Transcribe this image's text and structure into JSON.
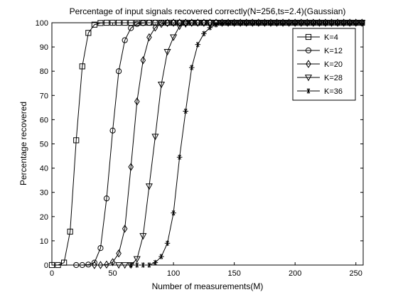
{
  "chart_data": {
    "type": "line",
    "title": "Percentage of input signals recovered correctly(N=256,ts=2.4)(Gaussian)",
    "xlabel": "Number of measurements(M)",
    "ylabel": "Percentage recovered",
    "xlim": [
      0,
      256
    ],
    "ylim": [
      0,
      100
    ],
    "xticks": [
      0,
      50,
      100,
      150,
      200,
      250
    ],
    "yticks": [
      0,
      10,
      20,
      30,
      40,
      50,
      60,
      70,
      80,
      90,
      100
    ],
    "grid": false,
    "legend_position": "top-right",
    "line_color": "#000000",
    "series": [
      {
        "name": "K=4",
        "marker": "square",
        "x": [
          0,
          5,
          10,
          15,
          20,
          25,
          30,
          35,
          40,
          45,
          50,
          55,
          60,
          65,
          70,
          75,
          80,
          85,
          90,
          95,
          100,
          105,
          110,
          115,
          120,
          125,
          130,
          135,
          140,
          145,
          150,
          155,
          160,
          165,
          170,
          175,
          180,
          185,
          190,
          195,
          200,
          205,
          210,
          215,
          220,
          225,
          230,
          235,
          240,
          245,
          250,
          255
        ],
        "y": [
          0,
          0,
          1,
          13.8,
          51.5,
          82,
          95.8,
          99.2,
          99.9,
          100,
          100,
          100,
          100,
          100,
          100,
          100,
          100,
          100,
          100,
          100,
          100,
          100,
          100,
          100,
          100,
          100,
          100,
          100,
          100,
          100,
          100,
          100,
          100,
          100,
          100,
          100,
          100,
          100,
          100,
          100,
          100,
          100,
          100,
          100,
          100,
          100,
          100,
          100,
          100,
          100,
          100,
          100
        ]
      },
      {
        "name": "K=12",
        "marker": "circle",
        "x": [
          20,
          25,
          30,
          35,
          40,
          45,
          50,
          55,
          60,
          65,
          70,
          75,
          80,
          85,
          90,
          95,
          100,
          105,
          110,
          115,
          120,
          125,
          130,
          135,
          140,
          145,
          150,
          155,
          160,
          165,
          170,
          175,
          180,
          185,
          190,
          195,
          200,
          205,
          210,
          215,
          220,
          225,
          230,
          235,
          240,
          245,
          250,
          255
        ],
        "y": [
          0,
          0,
          0.2,
          1,
          7,
          27.5,
          55.5,
          80,
          92.8,
          97.8,
          99.5,
          99.9,
          100,
          100,
          100,
          100,
          100,
          100,
          100,
          100,
          100,
          100,
          100,
          100,
          100,
          100,
          100,
          100,
          100,
          100,
          100,
          100,
          100,
          100,
          100,
          100,
          100,
          100,
          100,
          100,
          100,
          100,
          100,
          100,
          100,
          100,
          100,
          100
        ]
      },
      {
        "name": "K=20",
        "marker": "diamond",
        "x": [
          35,
          40,
          45,
          50,
          55,
          60,
          65,
          70,
          75,
          80,
          85,
          90,
          95,
          100,
          105,
          110,
          115,
          120,
          125,
          130,
          135,
          140,
          145,
          150,
          155,
          160,
          165,
          170,
          175,
          180,
          185,
          190,
          195,
          200,
          205,
          210,
          215,
          220,
          225,
          230,
          235,
          240,
          245,
          250,
          255
        ],
        "y": [
          0,
          0,
          0.2,
          1.2,
          4.8,
          15,
          40.5,
          67.5,
          84.5,
          94,
          98,
          99.5,
          99.9,
          100,
          100,
          100,
          100,
          100,
          100,
          100,
          100,
          100,
          100,
          100,
          100,
          100,
          100,
          100,
          100,
          100,
          100,
          100,
          100,
          100,
          100,
          100,
          100,
          100,
          100,
          100,
          100,
          100,
          100,
          100,
          100
        ]
      },
      {
        "name": "K=28",
        "marker": "triangle-down",
        "x": [
          55,
          60,
          65,
          70,
          75,
          80,
          85,
          90,
          95,
          100,
          105,
          110,
          115,
          120,
          125,
          130,
          135,
          140,
          145,
          150,
          155,
          160,
          165,
          170,
          175,
          180,
          185,
          190,
          195,
          200,
          205,
          210,
          215,
          220,
          225,
          230,
          235,
          240,
          245,
          250,
          255
        ],
        "y": [
          0,
          0,
          0,
          2.5,
          12,
          32.5,
          53,
          74.5,
          88,
          94,
          98.5,
          99.5,
          99.9,
          100,
          100,
          100,
          100,
          100,
          100,
          100,
          100,
          100,
          100,
          100,
          100,
          100,
          100,
          100,
          100,
          100,
          100,
          100,
          100,
          100,
          100,
          100,
          100,
          100,
          100,
          100,
          100
        ]
      },
      {
        "name": "K=36",
        "marker": "star",
        "x": [
          65,
          70,
          75,
          80,
          85,
          90,
          95,
          100,
          105,
          110,
          115,
          120,
          125,
          130,
          135,
          140,
          145,
          150,
          155,
          160,
          165,
          170,
          175,
          180,
          185,
          190,
          195,
          200,
          205,
          210,
          215,
          220,
          225,
          230,
          235,
          240,
          245,
          250,
          255
        ],
        "y": [
          0,
          0,
          0,
          0,
          1,
          3.5,
          9,
          21.5,
          44.5,
          63.5,
          81.5,
          91,
          95.5,
          98,
          99.2,
          99.8,
          99.9,
          100,
          100,
          100,
          100,
          100,
          100,
          100,
          100,
          100,
          100,
          100,
          100,
          100,
          100,
          100,
          100,
          100,
          100,
          100,
          100,
          100,
          100
        ]
      }
    ]
  }
}
